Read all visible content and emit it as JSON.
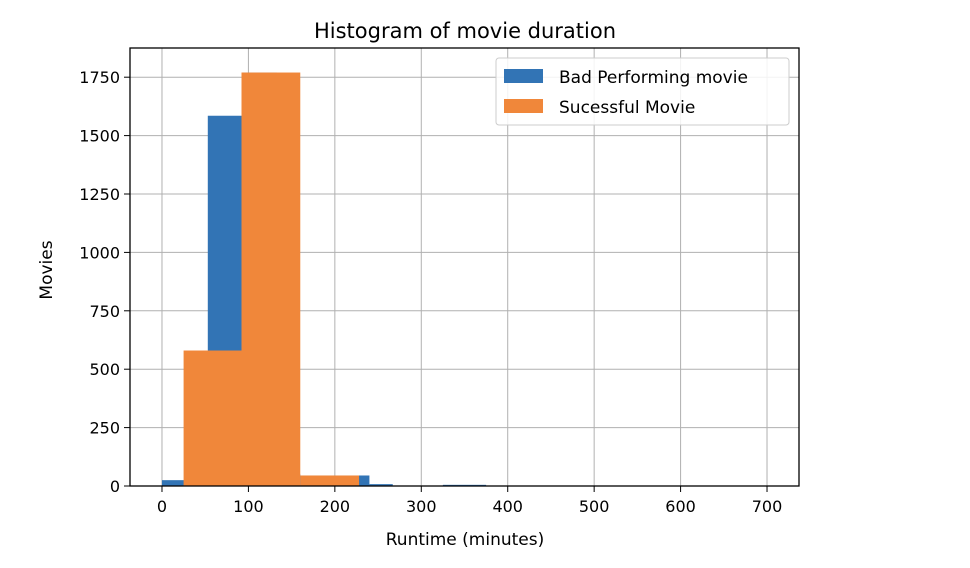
{
  "chart_data": {
    "type": "bar",
    "title": "Histogram of movie duration",
    "xlabel": "Runtime (minutes)",
    "ylabel": "Movies",
    "xlim": [
      -37,
      737
    ],
    "ylim": [
      0,
      1875
    ],
    "x_ticks": [
      0,
      100,
      200,
      300,
      400,
      500,
      600,
      700
    ],
    "y_ticks": [
      0,
      250,
      500,
      750,
      1000,
      1250,
      1500,
      1750
    ],
    "grid": true,
    "legend_position": "top-right",
    "series": [
      {
        "name": "Bad Performing movie",
        "color": "#3274b5",
        "bins": [
          {
            "x0": 0,
            "x1": 27,
            "value": 25
          },
          {
            "x0": 53,
            "x1": 93,
            "value": 1585
          },
          {
            "x0": 93,
            "x1": 133,
            "value": 1770
          },
          {
            "x0": 133,
            "x1": 160,
            "value": 50
          },
          {
            "x0": 160,
            "x1": 200,
            "value": 45
          },
          {
            "x0": 200,
            "x1": 240,
            "value": 45
          },
          {
            "x0": 240,
            "x1": 267,
            "value": 8
          },
          {
            "x0": 325,
            "x1": 375,
            "value": 5
          }
        ]
      },
      {
        "name": "Sucessful Movie",
        "color": "#f0873a",
        "bins": [
          {
            "x0": 25,
            "x1": 92,
            "value": 580
          },
          {
            "x0": 92,
            "x1": 160,
            "value": 1770
          },
          {
            "x0": 160,
            "x1": 228,
            "value": 45
          }
        ]
      }
    ]
  }
}
